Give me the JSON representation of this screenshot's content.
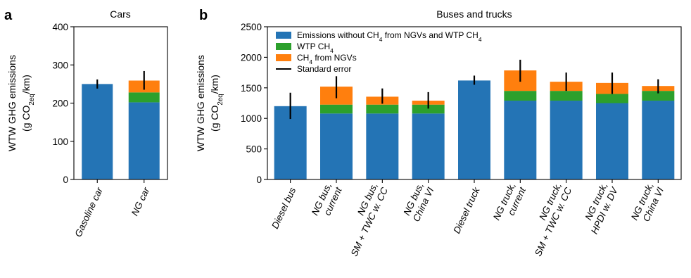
{
  "colors": {
    "base": "#2474b5",
    "wtp": "#2ca02c",
    "ngv": "#ff7f0e",
    "error": "#000000"
  },
  "chart_data": [
    {
      "panel": "a",
      "type": "bar",
      "stacked": true,
      "title": "Cars",
      "ylabel_line1": "WTW GHG emissions",
      "ylabel_line2_prefix": "(g CO",
      "ylabel_line2_sub": "2eq",
      "ylabel_line2_suffix": "/km)",
      "ylim": [
        0,
        400
      ],
      "yticks": [
        "0",
        "100",
        "200",
        "300",
        "400"
      ],
      "categories": [
        [
          "Gasoline car"
        ],
        [
          "NG car"
        ]
      ],
      "series": [
        {
          "key": "base",
          "values": [
            250,
            202
          ]
        },
        {
          "key": "wtp",
          "values": [
            0,
            26
          ]
        },
        {
          "key": "ngv",
          "values": [
            0,
            31
          ]
        }
      ],
      "error": [
        {
          "low": 238,
          "high": 262
        },
        {
          "low": 235,
          "high": 284
        }
      ],
      "grid": false
    },
    {
      "panel": "b",
      "type": "bar",
      "stacked": true,
      "title": "Buses and trucks",
      "ylabel_line1": "WTW GHG emissions",
      "ylabel_line2_prefix": "(g CO",
      "ylabel_line2_sub": "2eq",
      "ylabel_line2_suffix": "/km)",
      "ylim": [
        0,
        2500
      ],
      "yticks": [
        "0",
        "500",
        "1000",
        "1500",
        "2000",
        "2500"
      ],
      "categories": [
        [
          "Diesel bus"
        ],
        [
          "NG bus,",
          "current"
        ],
        [
          "NG bus,",
          "SM + TWC w. CC"
        ],
        [
          "NG bus,",
          "China VI"
        ],
        [
          "Diesel truck"
        ],
        [
          "NG truck,",
          "current"
        ],
        [
          "NG truck,",
          "SM + TWC w. CC"
        ],
        [
          "NG truck,",
          "HPDI w. DV"
        ],
        [
          "NG truck,",
          "China VI"
        ]
      ],
      "series": [
        {
          "key": "base",
          "values": [
            1200,
            1080,
            1080,
            1080,
            1620,
            1290,
            1290,
            1250,
            1290
          ]
        },
        {
          "key": "wtp",
          "values": [
            0,
            145,
            145,
            145,
            0,
            160,
            160,
            150,
            160
          ]
        },
        {
          "key": "ngv",
          "values": [
            0,
            295,
            130,
            65,
            0,
            335,
            150,
            180,
            80
          ]
        }
      ],
      "error": [
        {
          "low": 990,
          "high": 1420
        },
        {
          "low": 1330,
          "high": 1690
        },
        {
          "low": 1240,
          "high": 1490
        },
        {
          "low": 1160,
          "high": 1430
        },
        {
          "low": 1550,
          "high": 1700
        },
        {
          "low": 1600,
          "high": 1960
        },
        {
          "low": 1450,
          "high": 1750
        },
        {
          "low": 1400,
          "high": 1750
        },
        {
          "low": 1410,
          "high": 1640
        }
      ],
      "legend": {
        "placement": "top-left",
        "entries": [
          {
            "key": "base",
            "kind": "patch",
            "text": "Emissions without CH",
            "sub": "4",
            "suffix": " from NGVs and WTP CH",
            "sub2": "4"
          },
          {
            "key": "wtp",
            "kind": "patch",
            "text": "WTP CH",
            "sub": "4",
            "suffix": "",
            "sub2": ""
          },
          {
            "key": "ngv",
            "kind": "patch",
            "text": "CH",
            "sub": "4",
            "suffix": " from NGVs",
            "sub2": ""
          },
          {
            "key": "error",
            "kind": "line",
            "text": "Standard error",
            "sub": "",
            "suffix": "",
            "sub2": ""
          }
        ]
      },
      "grid": false
    }
  ]
}
